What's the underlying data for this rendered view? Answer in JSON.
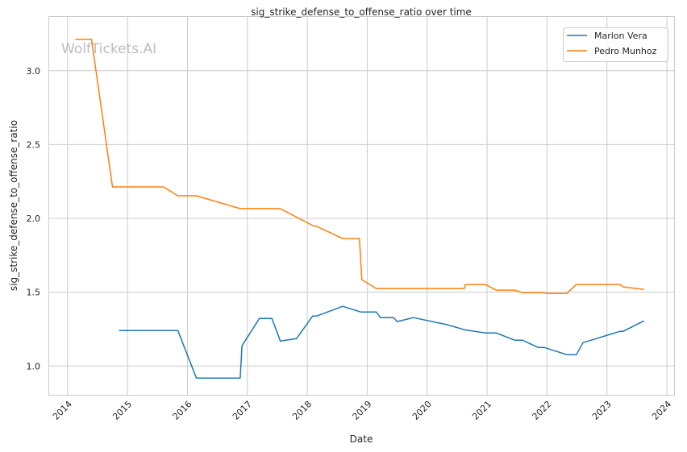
{
  "chart_data": {
    "type": "line",
    "title": "sig_strike_defense_to_offense_ratio over time",
    "xlabel": "Date",
    "ylabel": "sig_strike_defense_to_offense_ratio",
    "xlim": [
      2013.68,
      2024.12
    ],
    "ylim": [
      0.805,
      3.37
    ],
    "xticks": [
      2014,
      2015,
      2016,
      2017,
      2018,
      2019,
      2020,
      2021,
      2022,
      2023,
      2024
    ],
    "xtick_labels": [
      "2014",
      "2015",
      "2016",
      "2017",
      "2018",
      "2019",
      "2020",
      "2021",
      "2022",
      "2023",
      "2024"
    ],
    "yticks": [
      1.0,
      1.5,
      2.0,
      2.5,
      3.0
    ],
    "ytick_labels": [
      "1.0",
      "1.5",
      "2.0",
      "2.5",
      "3.0"
    ],
    "grid": true,
    "legend_position": "top-right",
    "watermark": "WolfTickets.AI",
    "series": [
      {
        "name": "Marlon Vera",
        "color": "#1f77b4",
        "x": [
          2014.86,
          2015.84,
          2016.15,
          2016.88,
          2016.91,
          2017.2,
          2017.41,
          2017.55,
          2017.82,
          2018.09,
          2018.16,
          2018.59,
          2018.89,
          2019.15,
          2019.22,
          2019.44,
          2019.5,
          2019.77,
          2020.34,
          2020.62,
          2020.97,
          2021.15,
          2021.46,
          2021.59,
          2021.85,
          2021.95,
          2022.33,
          2022.49,
          2022.6,
          2023.22,
          2023.27,
          2023.62
        ],
        "y": [
          1.24,
          1.24,
          0.918,
          0.918,
          1.137,
          1.322,
          1.322,
          1.169,
          1.186,
          1.339,
          1.339,
          1.404,
          1.366,
          1.366,
          1.328,
          1.328,
          1.301,
          1.328,
          1.279,
          1.246,
          1.224,
          1.224,
          1.175,
          1.175,
          1.126,
          1.126,
          1.077,
          1.077,
          1.158,
          1.235,
          1.235,
          1.306
        ]
      },
      {
        "name": "Pedro Munhoz",
        "color": "#ff7f0e",
        "x": [
          2014.13,
          2014.4,
          2014.75,
          2015.6,
          2015.84,
          2016.15,
          2016.88,
          2017.55,
          2018.09,
          2018.16,
          2018.59,
          2018.87,
          2018.91,
          2019.15,
          2020.62,
          2020.64,
          2020.97,
          2021.15,
          2021.46,
          2021.59,
          2021.93,
          2021.99,
          2022.33,
          2022.49,
          2023.22,
          2023.27,
          2023.62
        ],
        "y": [
          3.213,
          3.213,
          2.213,
          2.213,
          2.153,
          2.153,
          2.066,
          2.066,
          1.951,
          1.945,
          1.863,
          1.863,
          1.585,
          1.525,
          1.525,
          1.552,
          1.552,
          1.514,
          1.514,
          1.497,
          1.497,
          1.492,
          1.492,
          1.552,
          1.552,
          1.536,
          1.519
        ]
      }
    ]
  }
}
